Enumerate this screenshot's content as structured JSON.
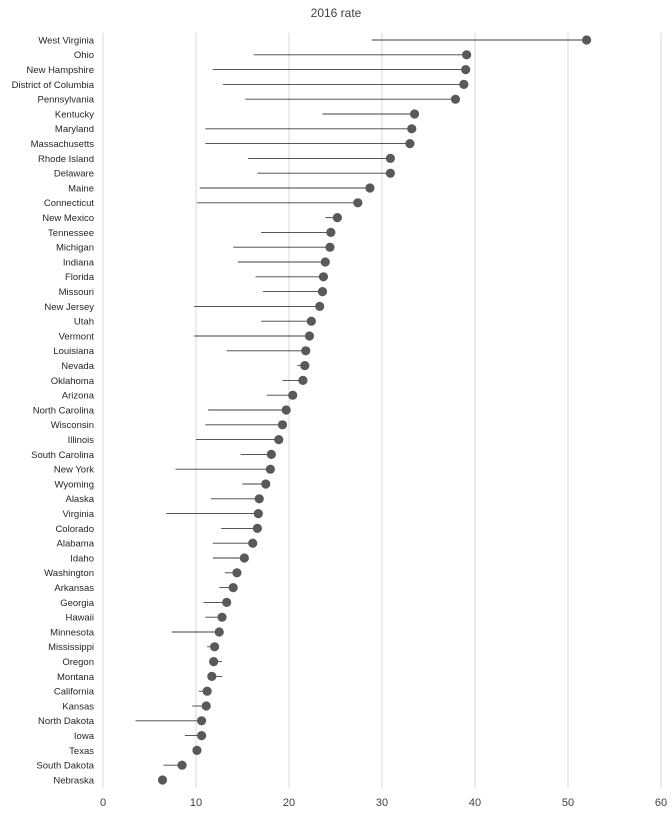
{
  "chart_data": {
    "type": "dot",
    "title": "2016 rate",
    "xlim": [
      0,
      60
    ],
    "x_ticks": [
      0,
      10,
      20,
      30,
      40,
      50,
      60
    ],
    "grid": "vertical",
    "legend": "none",
    "colors": {
      "dot": "#595959",
      "stem": "#3f3f3f",
      "grid": "#d9d9d9"
    },
    "categories": [
      "West Virginia",
      "Ohio",
      "New Hampshire",
      "District of Columbia",
      "Pennsylvania",
      "Kentucky",
      "Maryland",
      "Massachusetts",
      "Rhode Island",
      "Delaware",
      "Maine",
      "Connecticut",
      "New Mexico",
      "Tennessee",
      "Michigan",
      "Indiana",
      "Florida",
      "Missouri",
      "New Jersey",
      "Utah",
      "Vermont",
      "Louisiana",
      "Nevada",
      "Oklahoma",
      "Arizona",
      "North Carolina",
      "Wisconsin",
      "Illinois",
      "South Carolina",
      "New York",
      "Wyoming",
      "Alaska",
      "Virginia",
      "Colorado",
      "Alabama",
      "Idaho",
      "Washington",
      "Arkansas",
      "Georgia",
      "Hawaii",
      "Minnesota",
      "Mississippi",
      "Oregon",
      "Montana",
      "California",
      "Kansas",
      "North Dakota",
      "Iowa",
      "Texas",
      "South Dakota",
      "Nebraska"
    ],
    "series": [
      {
        "values": [
          52.0,
          39.1,
          39.0,
          38.8,
          37.9,
          33.5,
          33.2,
          33.0,
          30.9,
          30.9,
          28.7,
          27.4,
          25.2,
          24.5,
          24.4,
          23.9,
          23.7,
          23.6,
          23.3,
          22.4,
          22.2,
          21.8,
          21.7,
          21.5,
          20.4,
          19.7,
          19.3,
          18.9,
          18.1,
          18.0,
          17.5,
          16.8,
          16.7,
          16.6,
          16.1,
          15.2,
          14.4,
          14.0,
          13.3,
          12.8,
          12.5,
          12.0,
          11.9,
          11.7,
          11.2,
          11.1,
          10.6,
          10.6,
          10.1,
          8.5,
          6.4
        ]
      },
      {
        "values": [
          28.9,
          16.2,
          11.8,
          12.9,
          15.3,
          23.6,
          11.0,
          11.0,
          15.6,
          16.6,
          10.4,
          10.1,
          23.9,
          17.0,
          14.0,
          14.5,
          16.4,
          17.2,
          9.8,
          17.0,
          9.8,
          13.3,
          20.9,
          19.3,
          17.6,
          11.3,
          11.0,
          10.0,
          14.8,
          7.8,
          15.0,
          11.6,
          6.8,
          12.7,
          11.8,
          11.8,
          13.1,
          12.5,
          10.8,
          11.0,
          7.4,
          11.2,
          12.8,
          12.8,
          10.3,
          9.6,
          3.5,
          8.8,
          9.7,
          6.5,
          6.2
        ]
      }
    ]
  }
}
